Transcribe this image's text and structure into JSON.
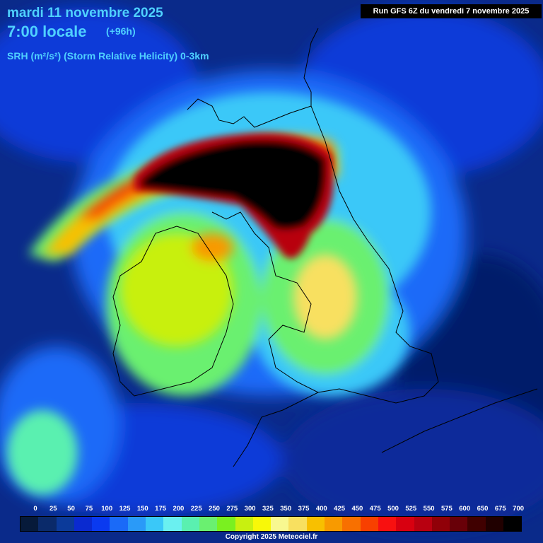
{
  "header": {
    "date": "mardi 11 novembre 2025",
    "time": "7:00 locale",
    "forecast_hour": "(+96h)",
    "parameter": "SRH (m²/s²) (Storm Relative Helicity) 0-3km"
  },
  "run_info": "Run GFS 6Z du vendredi 7 novembre 2025",
  "legend": {
    "labels": [
      "0",
      "25",
      "50",
      "75",
      "100",
      "125",
      "150",
      "175",
      "200",
      "225",
      "250",
      "275",
      "300",
      "325",
      "350",
      "375",
      "400",
      "425",
      "450",
      "475",
      "500",
      "525",
      "550",
      "575",
      "600",
      "650",
      "675",
      "700"
    ],
    "colors": [
      "#061a3a",
      "#0a2a6a",
      "#0b3a9a",
      "#0a2ad0",
      "#0a3af0",
      "#1a6af8",
      "#2a9af8",
      "#3ac8f8",
      "#6af0f0",
      "#5af0b0",
      "#6af070",
      "#7af020",
      "#c8f010",
      "#f8f808",
      "#f8f890",
      "#f8e060",
      "#f8c000",
      "#f89a00",
      "#f87000",
      "#f84000",
      "#f81010",
      "#d80010",
      "#b80010",
      "#900008",
      "#680008",
      "#400000",
      "#200000",
      "#000000"
    ]
  },
  "copyright": "Copyright 2025 Meteociel.fr"
}
